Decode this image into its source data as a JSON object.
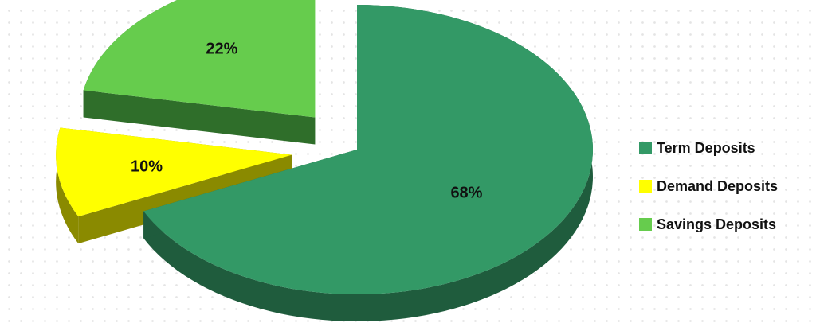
{
  "chart_data": {
    "type": "pie",
    "three_d": true,
    "title": "",
    "slices": [
      {
        "name": "Term Deposits",
        "value": 68,
        "label": "68%",
        "color": "#339966",
        "side_color": "#1f5c3d",
        "exploded": false
      },
      {
        "name": "Demand Deposits",
        "value": 10,
        "label": "10%",
        "color": "#ffff00",
        "side_color": "#8a8a00",
        "exploded": true
      },
      {
        "name": "Savings Deposits",
        "value": 22,
        "label": "22%",
        "color": "#66cc4d",
        "side_color": "#2f6e2a",
        "exploded": true
      }
    ],
    "legend": {
      "position": "right",
      "items": [
        {
          "label": "Term Deposits",
          "color": "#339966"
        },
        {
          "label": "Demand Deposits",
          "color": "#ffff00"
        },
        {
          "label": "Savings Deposits",
          "color": "#66cc4d"
        }
      ]
    }
  }
}
